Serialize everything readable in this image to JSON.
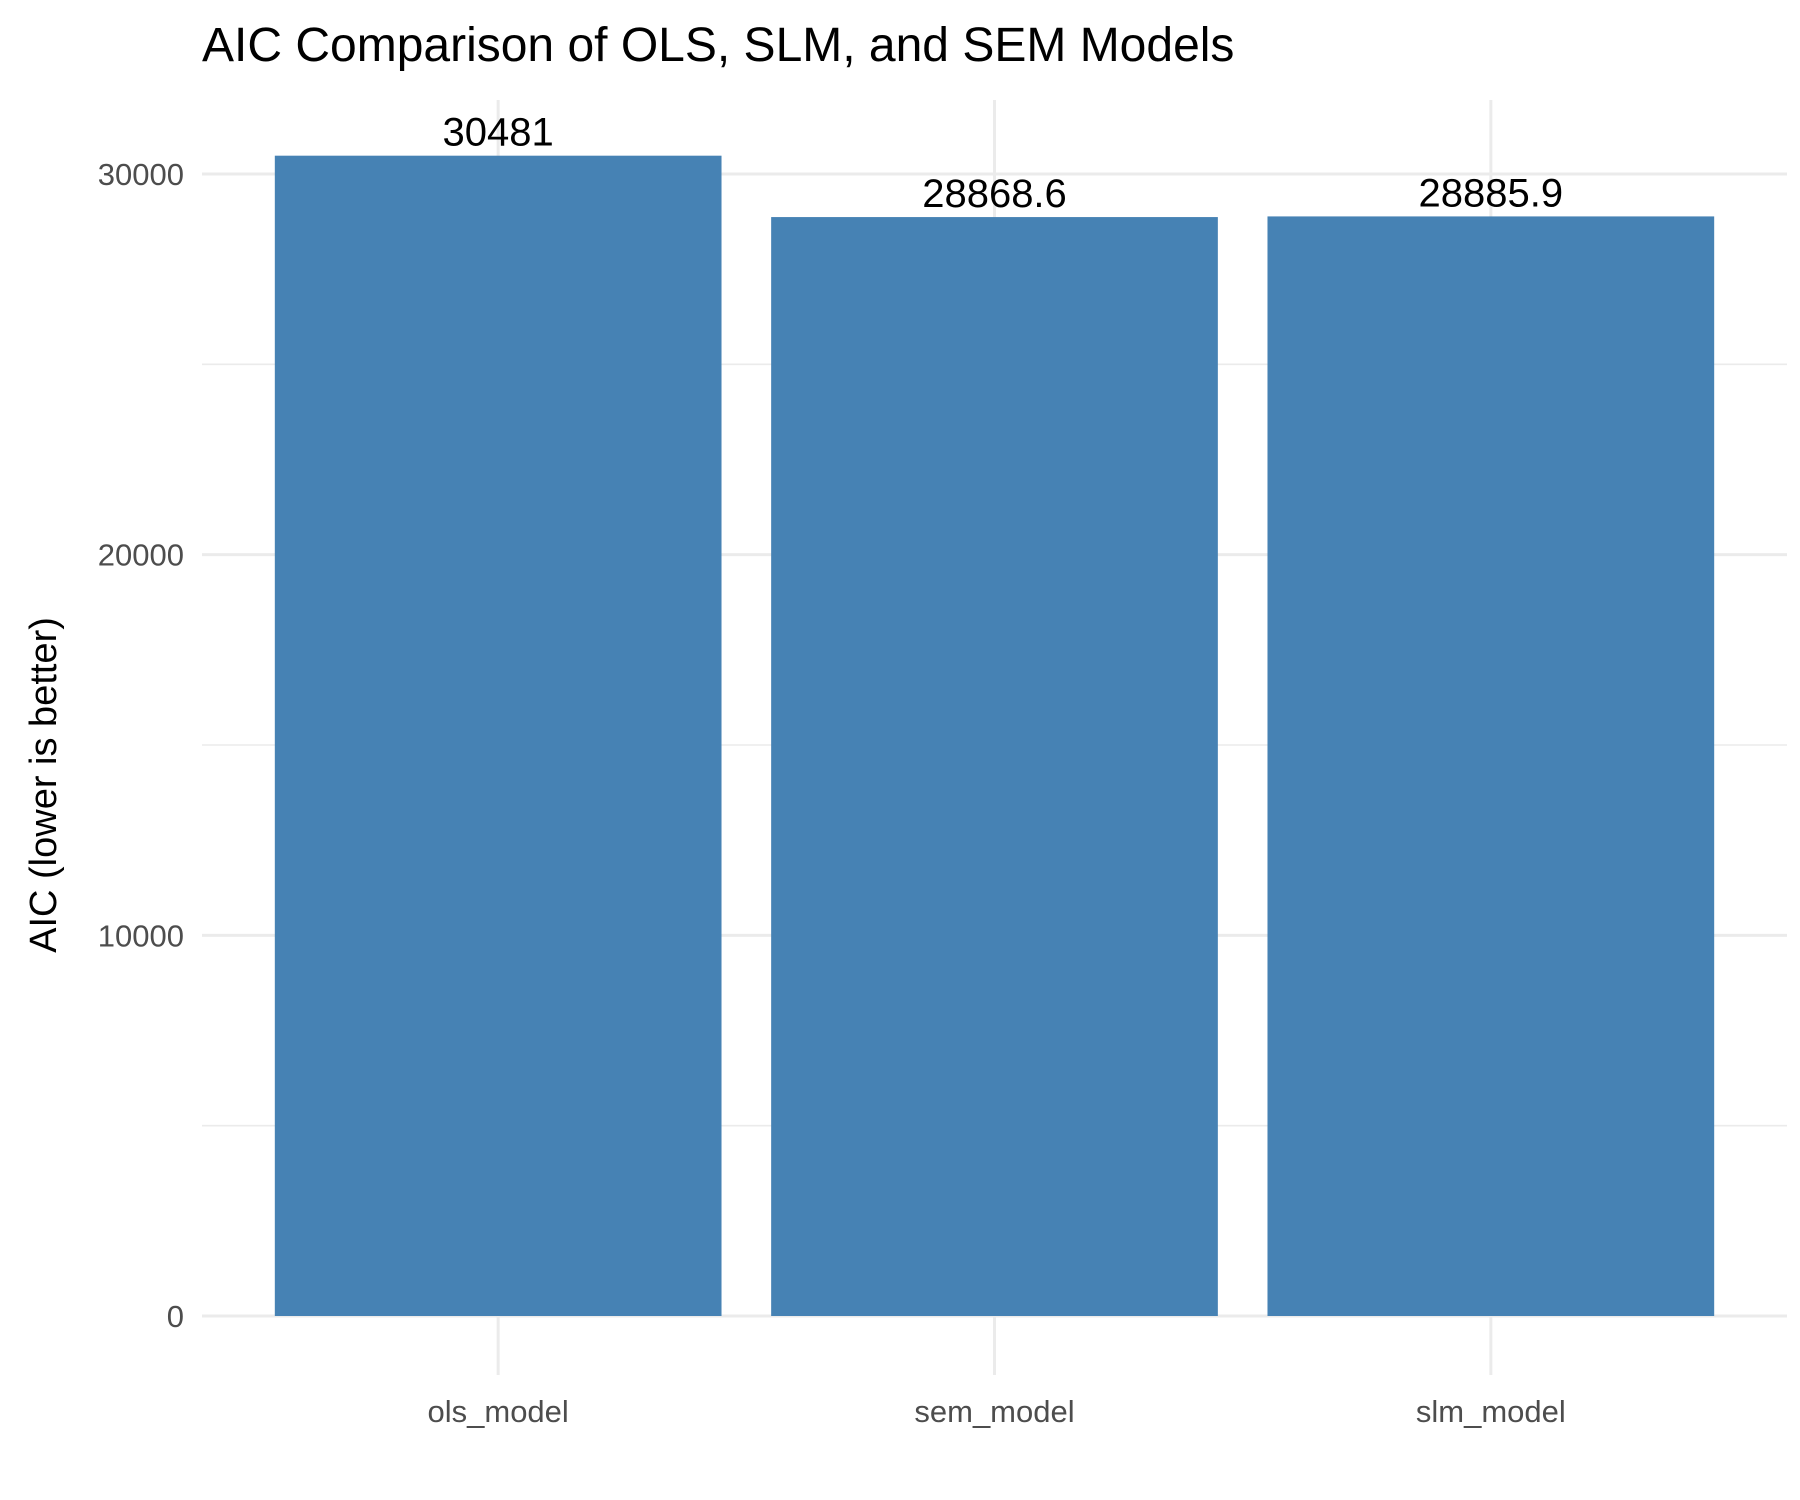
{
  "chart_data": {
    "type": "bar",
    "title": "AIC Comparison of OLS, SLM, and SEM Models",
    "xlabel": "",
    "ylabel": "AIC (lower is better)",
    "categories": [
      "ols_model",
      "sem_model",
      "slm_model"
    ],
    "values": [
      30481,
      28868.6,
      28885.9
    ],
    "value_labels": [
      "30481",
      "28868.6",
      "28885.9"
    ],
    "y_ticks": [
      0,
      10000,
      20000,
      30000
    ],
    "y_tick_labels": [
      "0",
      "10000",
      "20000",
      "30000"
    ],
    "ylim": [
      0,
      32000
    ],
    "grid": true,
    "legend": "none",
    "bar_color": "#4682b4"
  }
}
